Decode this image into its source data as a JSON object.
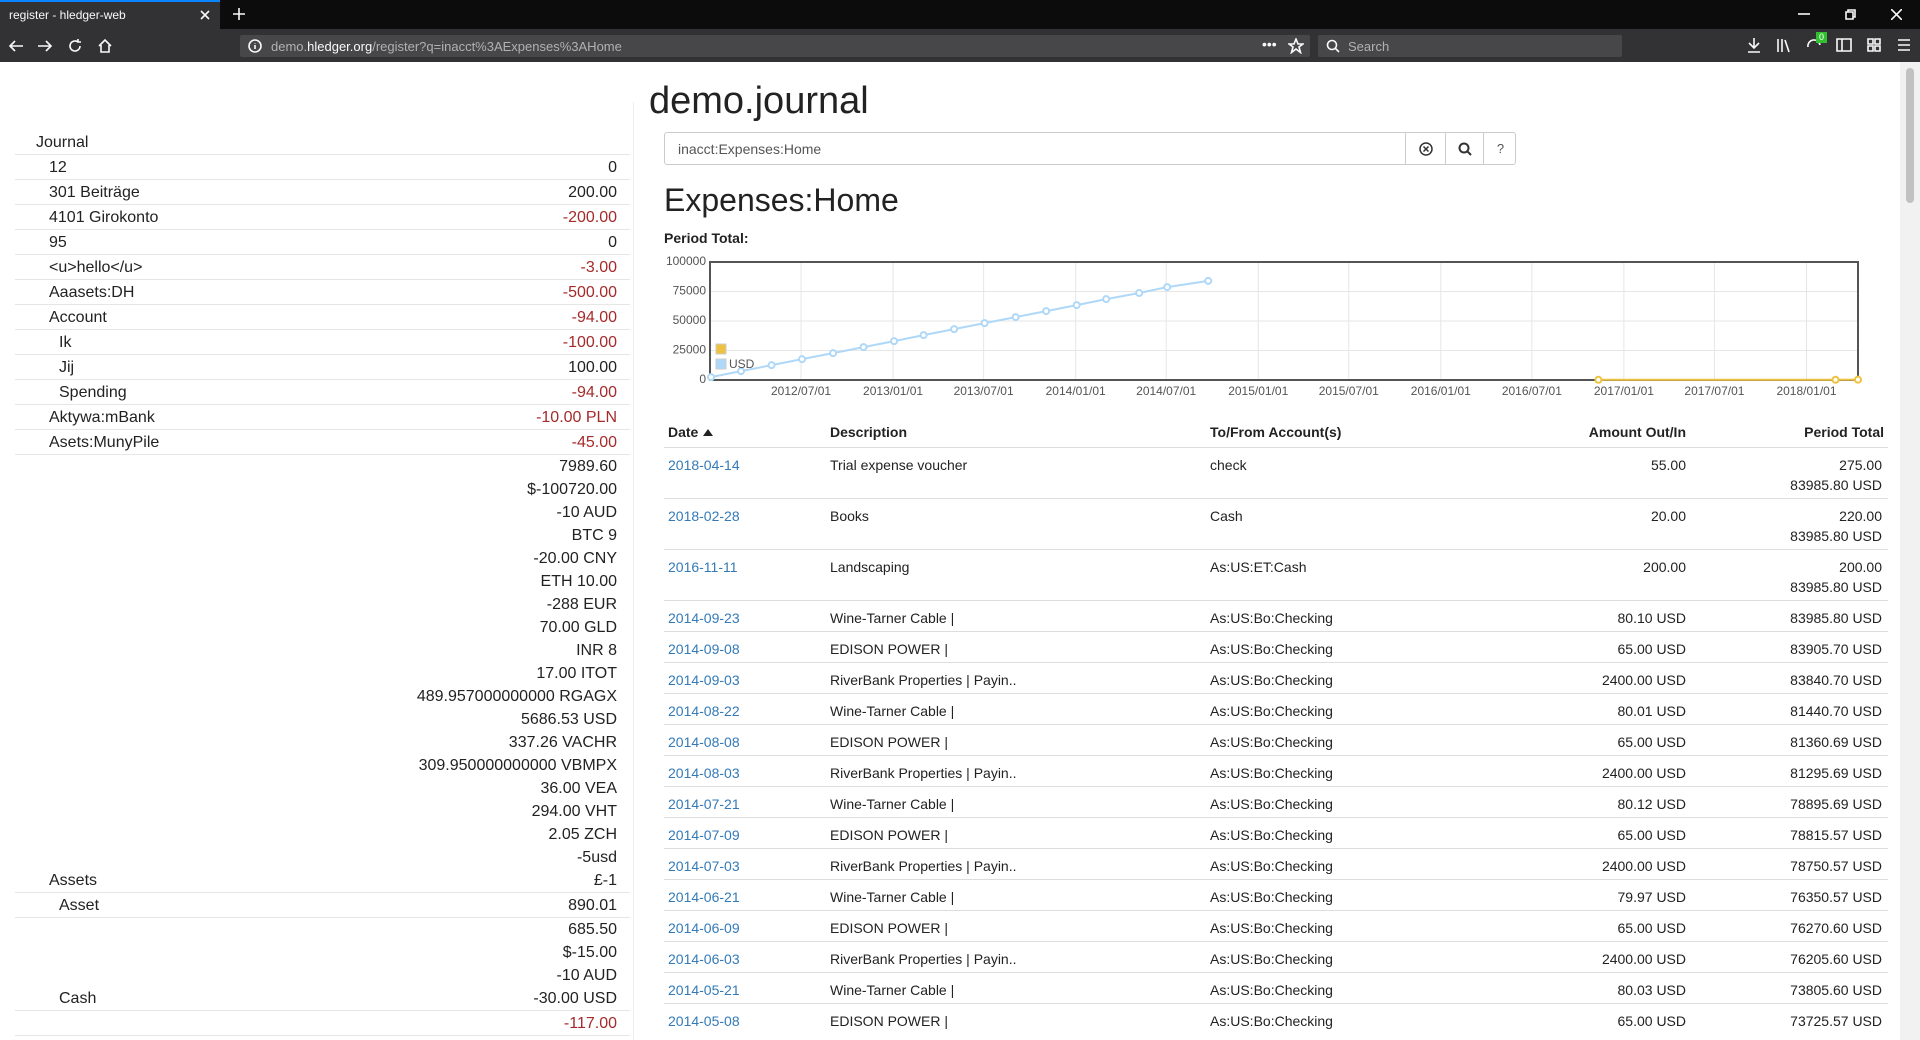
{
  "browser": {
    "tab_title": "register - hledger-web",
    "url": {
      "prefix": "demo.",
      "domain": "hledger.org",
      "path": "/register?q=inacct%3AExpenses%3AHome"
    },
    "search_placeholder": "Search",
    "badge": "0"
  },
  "sidebar": {
    "journal": "Journal",
    "accounts": [
      {
        "name": "12",
        "amounts": [
          "0"
        ]
      },
      {
        "name": "301 Beiträge",
        "amounts": [
          "200.00"
        ]
      },
      {
        "name": "4101 Girokonto",
        "amounts": [
          "-200.00"
        ]
      },
      {
        "name": "95",
        "amounts": [
          "0"
        ]
      },
      {
        "name": "<u>hello</u>",
        "amounts": [
          "-3.00"
        ]
      },
      {
        "name": "Aaasets:DH",
        "amounts": [
          "-500.00"
        ]
      },
      {
        "name": "Account",
        "amounts": [
          "-94.00"
        ],
        "children": [
          {
            "name": "Ik",
            "amounts": [
              "-100.00"
            ]
          },
          {
            "name": "Jij",
            "amounts": [
              "100.00"
            ]
          },
          {
            "name": "Spending",
            "amounts": [
              "-94.00"
            ]
          }
        ]
      },
      {
        "name": "Aktywa:mBank",
        "amounts": [
          "-10.00 PLN"
        ]
      },
      {
        "name": "Asets:MunyPile",
        "amounts": [
          "-45.00"
        ]
      },
      {
        "name": "Assets",
        "amounts": [
          "7989.60",
          "$-100720.00",
          "-10 AUD",
          "BTC 9",
          "-20.00 CNY",
          "ETH 10.00",
          "-288 EUR",
          "70.00 GLD",
          "INR 8",
          "17.00 ITOT",
          "489.957000000000 RGAGX",
          "5686.53 USD",
          "337.26 VACHR",
          "309.950000000000 VBMPX",
          "36.00 VEA",
          "294.00 VHT",
          "2.05 ZCH",
          "-5usd",
          "£-1"
        ],
        "children": [
          {
            "name": "Asset",
            "amounts": [
              "890.01"
            ]
          },
          {
            "name": "Cash",
            "amounts": [
              "685.50",
              "$-15.00",
              "-10 AUD",
              "-30.00 USD"
            ]
          },
          {
            "amounts": [
              "-117.00"
            ]
          }
        ]
      }
    ]
  },
  "main": {
    "title": "demo.journal",
    "search_query": "inacct:Expenses:Home",
    "search_help": "?",
    "account_title": "Expenses:Home",
    "period_total_label": "Period Total:",
    "register": {
      "columns": [
        "Date",
        "Description",
        "To/From Account(s)",
        "Amount Out/In",
        "Period Total"
      ],
      "rows": [
        {
          "date": "2018-04-14",
          "description": "Trial expense voucher",
          "account": "check",
          "amount": "55.00",
          "totals": [
            "275.00",
            "83985.80 USD"
          ]
        },
        {
          "date": "2018-02-28",
          "description": "Books",
          "account": "Cash",
          "amount": "20.00",
          "totals": [
            "220.00",
            "83985.80 USD"
          ]
        },
        {
          "date": "2016-11-11",
          "description": "Landscaping",
          "account": "As:US:ET:Cash",
          "amount": "200.00",
          "totals": [
            "200.00",
            "83985.80 USD"
          ]
        },
        {
          "date": "2014-09-23",
          "description": "Wine-Tarner Cable |",
          "account": "As:US:Bo:Checking",
          "amount": "80.10 USD",
          "totals": [
            "83985.80 USD"
          ]
        },
        {
          "date": "2014-09-08",
          "description": "EDISON POWER |",
          "account": "As:US:Bo:Checking",
          "amount": "65.00 USD",
          "totals": [
            "83905.70 USD"
          ]
        },
        {
          "date": "2014-09-03",
          "description": "RiverBank Properties | Payin..",
          "account": "As:US:Bo:Checking",
          "amount": "2400.00 USD",
          "totals": [
            "83840.70 USD"
          ]
        },
        {
          "date": "2014-08-22",
          "description": "Wine-Tarner Cable |",
          "account": "As:US:Bo:Checking",
          "amount": "80.01 USD",
          "totals": [
            "81440.70 USD"
          ]
        },
        {
          "date": "2014-08-08",
          "description": "EDISON POWER |",
          "account": "As:US:Bo:Checking",
          "amount": "65.00 USD",
          "totals": [
            "81360.69 USD"
          ]
        },
        {
          "date": "2014-08-03",
          "description": "RiverBank Properties | Payin..",
          "account": "As:US:Bo:Checking",
          "amount": "2400.00 USD",
          "totals": [
            "81295.69 USD"
          ]
        },
        {
          "date": "2014-07-21",
          "description": "Wine-Tarner Cable |",
          "account": "As:US:Bo:Checking",
          "amount": "80.12 USD",
          "totals": [
            "78895.69 USD"
          ]
        },
        {
          "date": "2014-07-09",
          "description": "EDISON POWER |",
          "account": "As:US:Bo:Checking",
          "amount": "65.00 USD",
          "totals": [
            "78815.57 USD"
          ]
        },
        {
          "date": "2014-07-03",
          "description": "RiverBank Properties | Payin..",
          "account": "As:US:Bo:Checking",
          "amount": "2400.00 USD",
          "totals": [
            "78750.57 USD"
          ]
        },
        {
          "date": "2014-06-21",
          "description": "Wine-Tarner Cable |",
          "account": "As:US:Bo:Checking",
          "amount": "79.97 USD",
          "totals": [
            "76350.57 USD"
          ]
        },
        {
          "date": "2014-06-09",
          "description": "EDISON POWER |",
          "account": "As:US:Bo:Checking",
          "amount": "65.00 USD",
          "totals": [
            "76270.60 USD"
          ]
        },
        {
          "date": "2014-06-03",
          "description": "RiverBank Properties | Payin..",
          "account": "As:US:Bo:Checking",
          "amount": "2400.00 USD",
          "totals": [
            "76205.60 USD"
          ]
        },
        {
          "date": "2014-05-21",
          "description": "Wine-Tarner Cable |",
          "account": "As:US:Bo:Checking",
          "amount": "80.03 USD",
          "totals": [
            "73805.60 USD"
          ]
        },
        {
          "date": "2014-05-08",
          "description": "EDISON POWER |",
          "account": "As:US:Bo:Checking",
          "amount": "65.00 USD",
          "totals": [
            "73725.57 USD"
          ]
        }
      ]
    }
  },
  "chart_data": {
    "type": "line",
    "xlim": [
      "2012/01/01",
      "2018/04/14"
    ],
    "ylim": [
      0,
      100000
    ],
    "xticks": [
      "2012/07/01",
      "2013/01/01",
      "2013/07/01",
      "2014/01/01",
      "2014/07/01",
      "2015/01/01",
      "2015/07/01",
      "2016/01/01",
      "2016/07/01",
      "2017/01/01",
      "2017/07/01",
      "2018/01/01"
    ],
    "yticks": [
      0,
      25000,
      50000,
      75000,
      100000
    ],
    "grid": true,
    "legend": "sw",
    "series": [
      {
        "color": "#edc240",
        "x": [
          "2016/11/11",
          "2018/02/28",
          "2018/04/14"
        ],
        "values": [
          200,
          220,
          275
        ]
      },
      {
        "name": "USD",
        "color": "#afd8f8",
        "x": [
          "2012/01/03",
          "2012/03/03",
          "2012/05/03",
          "2012/07/03",
          "2012/09/03",
          "2012/11/03",
          "2013/01/03",
          "2013/03/03",
          "2013/05/03",
          "2013/07/03",
          "2013/09/03",
          "2013/11/03",
          "2014/01/03",
          "2014/03/03",
          "2014/05/08",
          "2014/07/03",
          "2014/09/23"
        ],
        "values": [
          2400,
          7490,
          12580,
          17670,
          22760,
          27850,
          32940,
          38030,
          43120,
          48210,
          53300,
          58390,
          63480,
          68570,
          73725.57,
          78750.57,
          83985.8
        ]
      }
    ]
  }
}
